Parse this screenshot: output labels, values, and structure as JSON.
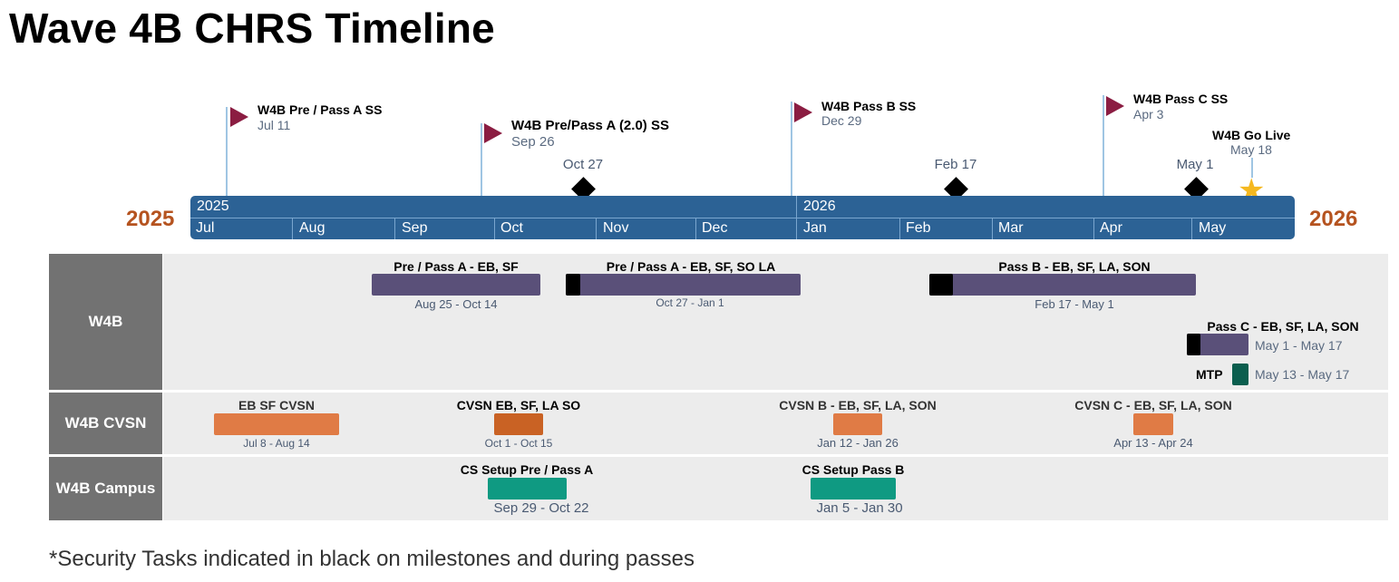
{
  "title": "Wave 4B CHRS Timeline",
  "years": {
    "left": "2025",
    "right": "2026",
    "bar_start": "2025",
    "bar_mid": "2026"
  },
  "months": [
    "Jul",
    "Aug",
    "Sep",
    "Oct",
    "Nov",
    "Dec",
    "Jan",
    "Feb",
    "Mar",
    "Apr",
    "May"
  ],
  "milestones": [
    {
      "label": "W4B Pre / Pass A SS",
      "date": "Jul 11"
    },
    {
      "label": "W4B Pre/Pass A (2.0) SS",
      "date": "Sep 26"
    },
    {
      "label": "W4B Pass B SS",
      "date": "Dec 29"
    },
    {
      "label": "W4B Pass C SS",
      "date": "Apr 3"
    },
    {
      "label": "W4B Go Live",
      "date": "May 18"
    }
  ],
  "security_milestones": [
    "Oct 27",
    "Feb 17",
    "May 1"
  ],
  "lanes": [
    {
      "name": "W4B",
      "tasks": [
        {
          "label": "Pre / Pass A - EB, SF",
          "date": "Aug 25 - Oct 14"
        },
        {
          "label": "Pre / Pass A - EB, SF, SO LA",
          "date": "Oct 27 - Jan 1"
        },
        {
          "label": "Pass B - EB, SF, LA, SON",
          "date": "Feb 17 - May 1"
        },
        {
          "label": "Pass C - EB, SF, LA, SON",
          "date": "May 1 - May 17"
        },
        {
          "label": "MTP",
          "date": "May 13 - May 17"
        }
      ]
    },
    {
      "name": "W4B CVSN",
      "tasks": [
        {
          "label": "EB SF CVSN",
          "date": "Jul 8 - Aug 14"
        },
        {
          "label": "CVSN EB, SF, LA SO",
          "date": "Oct 1 - Oct 15"
        },
        {
          "label": "CVSN B - EB, SF, LA, SON",
          "date": "Jan 12 - Jan 26"
        },
        {
          "label": "CVSN C - EB, SF, LA, SON",
          "date": "Apr 13 - Apr 24"
        }
      ]
    },
    {
      "name": "W4B Campus",
      "tasks": [
        {
          "label": "CS Setup Pre / Pass A",
          "date": "Sep 29 - Oct 22"
        },
        {
          "label": "CS Setup Pass B",
          "date": "Jan 5 - Jan 30"
        }
      ]
    }
  ],
  "colors": {
    "timebar": "#2c6295",
    "flag": "#8b1d42",
    "w4b_task": "#5a5079",
    "cvsn_task": "#e07b45",
    "cvsn_task_dark": "#c96224",
    "campus_task": "#0f9a82",
    "mtp_task": "#0b5e4e",
    "security": "#000000",
    "year_label": "#b5531f"
  },
  "footnote": "*Security Tasks indicated in black on milestones and during passes"
}
